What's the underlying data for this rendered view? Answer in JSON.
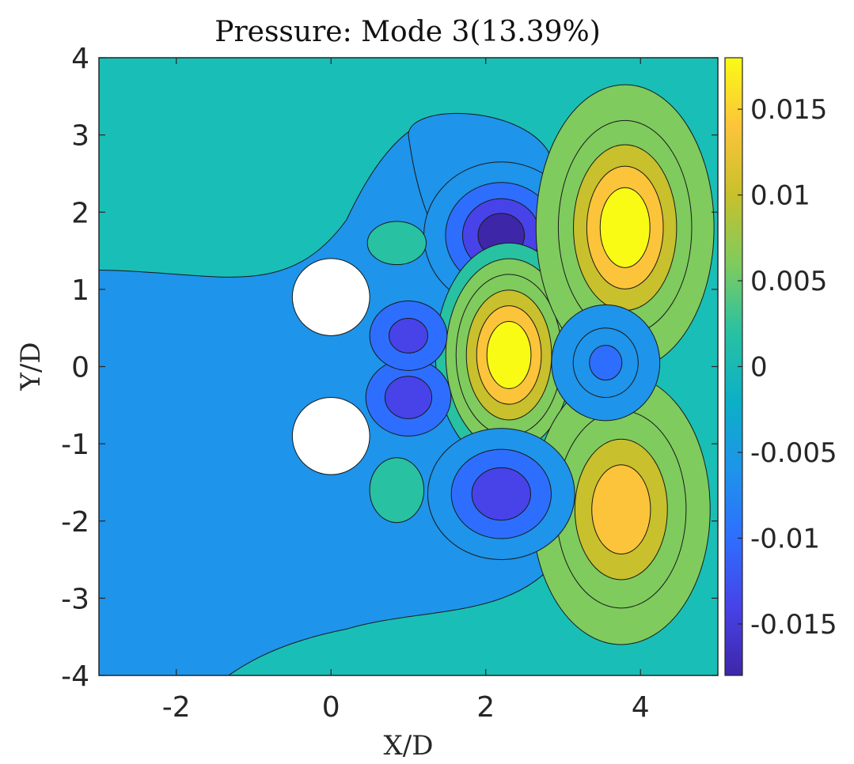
{
  "chart_data": {
    "type": "contour",
    "title": "Pressure: Mode 3(13.39%)",
    "xlabel": "X/D",
    "ylabel": "Y/D",
    "xlim": [
      -3,
      5
    ],
    "ylim": [
      -4,
      4
    ],
    "x_ticks": [
      {
        "value": -2,
        "label": "-2"
      },
      {
        "value": 0,
        "label": "0"
      },
      {
        "value": 2,
        "label": "2"
      },
      {
        "value": 4,
        "label": "4"
      }
    ],
    "y_ticks": [
      {
        "value": 4,
        "label": "4"
      },
      {
        "value": 3,
        "label": "3"
      },
      {
        "value": 2,
        "label": "2"
      },
      {
        "value": 1,
        "label": "1"
      },
      {
        "value": 0,
        "label": "0"
      },
      {
        "value": -1,
        "label": "-1"
      },
      {
        "value": -2,
        "label": "-2"
      },
      {
        "value": -3,
        "label": "-3"
      },
      {
        "value": -4,
        "label": "-4"
      }
    ],
    "colorbar": {
      "colormap": "parula",
      "range": [
        -0.018,
        0.018
      ],
      "ticks": [
        {
          "value": 0.015,
          "label": "0.015"
        },
        {
          "value": 0.01,
          "label": "0.01"
        },
        {
          "value": 0.005,
          "label": "0.005"
        },
        {
          "value": 0,
          "label": "0"
        },
        {
          "value": -0.005,
          "label": "-0.005"
        },
        {
          "value": -0.01,
          "label": "-0.01"
        },
        {
          "value": -0.015,
          "label": "-0.015"
        }
      ],
      "stops": [
        "#3e26a8",
        "#4743e8",
        "#2e6efe",
        "#1e94ea",
        "#0cb0c6",
        "#28c1a2",
        "#7fcb5e",
        "#c8c02c",
        "#fcc43a",
        "#f9fb15"
      ]
    },
    "background_level": "#19bfb6",
    "cylinders": [
      {
        "x": 0,
        "y": 0.9,
        "d": 1
      },
      {
        "x": 0,
        "y": -0.9,
        "d": 1
      }
    ],
    "contour_levels": [
      -0.0165,
      -0.0135,
      -0.0105,
      -0.0075,
      -0.0045,
      -0.0015,
      0.0015,
      0.0045,
      0.0075,
      0.0105,
      0.0135,
      0.0165
    ],
    "features": [
      {
        "x": 2.2,
        "y": 1.7,
        "peak": -0.0175,
        "label": "upper negative lobe"
      },
      {
        "x": 2.3,
        "y": 0.15,
        "peak": 0.0175,
        "label": "central positive lobe"
      },
      {
        "x": 3.8,
        "y": 1.8,
        "peak": 0.0175,
        "label": "upper-right positive lobe"
      },
      {
        "x": 3.75,
        "y": -1.85,
        "peak": 0.0155,
        "label": "lower-right positive lobe"
      },
      {
        "x": 2.2,
        "y": -1.65,
        "peak": -0.0155,
        "label": "lower negative lobe"
      },
      {
        "x": 3.55,
        "y": 0.05,
        "peak": -0.011,
        "label": "right-centre negative lobe"
      },
      {
        "x": 1.0,
        "y": -0.4,
        "peak": -0.013,
        "label": "wake negative lobe"
      },
      {
        "x": 1.0,
        "y": 0.4,
        "peak": -0.012,
        "label": "wake negative lobe"
      },
      {
        "x": 0.85,
        "y": 1.6,
        "peak": 0.003,
        "label": "small positive island"
      },
      {
        "x": 0.85,
        "y": -1.6,
        "peak": 0.002,
        "label": "small positive island"
      }
    ]
  }
}
